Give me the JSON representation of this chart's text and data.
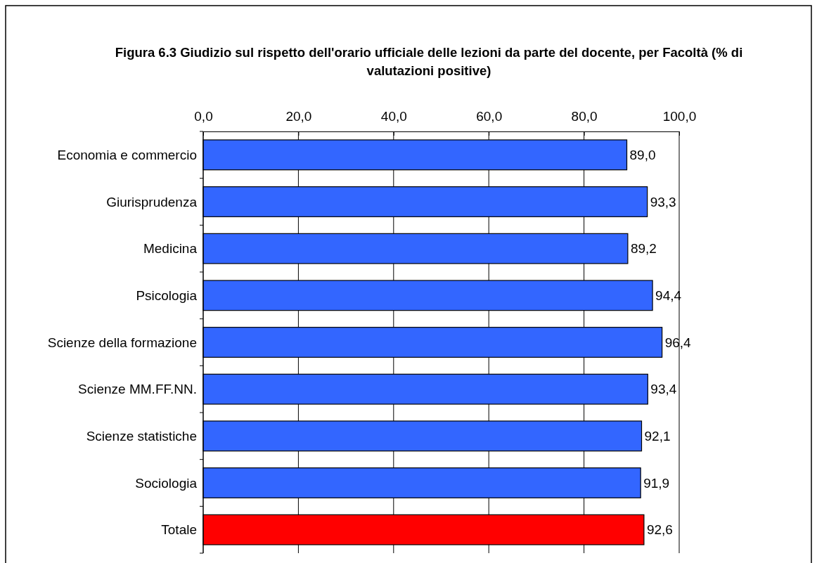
{
  "chart_data": {
    "type": "bar",
    "orientation": "horizontal",
    "title": "Figura 6.3 Giudizio sul rispetto dell'orario ufficiale delle lezioni da parte del docente, per Facoltà (% di valutazioni positive)",
    "categories": [
      "Economia e commercio",
      "Giurisprudenza",
      "Medicina",
      "Psicologia",
      "Scienze della formazione",
      "Scienze MM.FF.NN.",
      "Scienze statistiche",
      "Sociologia",
      "Totale"
    ],
    "values": [
      89.0,
      93.3,
      89.2,
      94.4,
      96.4,
      93.4,
      92.1,
      91.9,
      92.6
    ],
    "value_labels": [
      "89,0",
      "93,3",
      "89,2",
      "94,4",
      "96,4",
      "93,4",
      "92,1",
      "91,9",
      "92,6"
    ],
    "colors": [
      "#3366ff",
      "#3366ff",
      "#3366ff",
      "#3366ff",
      "#3366ff",
      "#3366ff",
      "#3366ff",
      "#3366ff",
      "#ff0000"
    ],
    "xlim": [
      0,
      100
    ],
    "xticks": [
      {
        "value": 0,
        "label": "0,0"
      },
      {
        "value": 20,
        "label": "20,0"
      },
      {
        "value": 40,
        "label": "40,0"
      },
      {
        "value": 60,
        "label": "60,0"
      },
      {
        "value": 80,
        "label": "80,0"
      },
      {
        "value": 100,
        "label": "100,0"
      }
    ],
    "grid": "x"
  }
}
